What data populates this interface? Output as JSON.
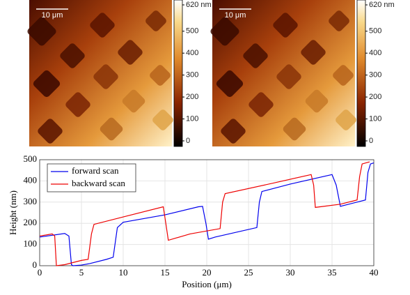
{
  "afm_images": [
    {
      "scale_bar": "10 μm",
      "colorbar": {
        "lim": [
          0,
          620
        ],
        "ticks": [
          {
            "value": 620,
            "label": "620 nm"
          },
          500,
          400,
          300,
          200,
          100,
          0
        ]
      }
    },
    {
      "scale_bar": "10 μm",
      "colorbar": {
        "lim": [
          0,
          620
        ],
        "ticks": [
          {
            "value": 620,
            "label": "620 nm"
          },
          500,
          400,
          300,
          200,
          100,
          0
        ]
      }
    }
  ],
  "chart_data": {
    "type": "line",
    "xlabel": "Position (μm)",
    "ylabel": "Height (nm)",
    "xlim": [
      0,
      40
    ],
    "ylim": [
      0,
      500
    ],
    "xticks": [
      0,
      5,
      10,
      15,
      20,
      25,
      30,
      35,
      40
    ],
    "yticks": [
      0,
      100,
      200,
      300,
      400,
      500
    ],
    "grid": true,
    "legend": "upper left",
    "series": [
      {
        "name": "forward scan",
        "color": "#0000ee",
        "x": [
          0,
          3,
          3.5,
          3.8,
          4,
          5,
          6,
          8,
          8.8,
          9.3,
          10,
          15,
          19,
          19.5,
          19.9,
          20.2,
          21,
          26,
          26.3,
          26.6,
          30,
          35,
          35.5,
          36,
          38,
          39,
          39.3,
          39.6,
          40
        ],
        "values": [
          135,
          152,
          140,
          5,
          0,
          3,
          10,
          30,
          40,
          180,
          205,
          240,
          278,
          280,
          200,
          125,
          135,
          180,
          300,
          350,
          385,
          430,
          380,
          280,
          300,
          310,
          440,
          480,
          485
        ]
      },
      {
        "name": "backward scan",
        "color": "#ee0000",
        "x": [
          0,
          1.5,
          1.8,
          2,
          3,
          5,
          5.8,
          6.2,
          6.5,
          10,
          14.8,
          15.1,
          15.4,
          18,
          21.6,
          21.9,
          22.2,
          28,
          32.5,
          32.8,
          33,
          36,
          38,
          38.3,
          38.6,
          39.5
        ],
        "values": [
          140,
          150,
          140,
          0,
          5,
          25,
          30,
          150,
          195,
          230,
          278,
          200,
          120,
          150,
          175,
          300,
          340,
          390,
          430,
          380,
          275,
          290,
          310,
          420,
          480,
          490
        ]
      }
    ]
  }
}
